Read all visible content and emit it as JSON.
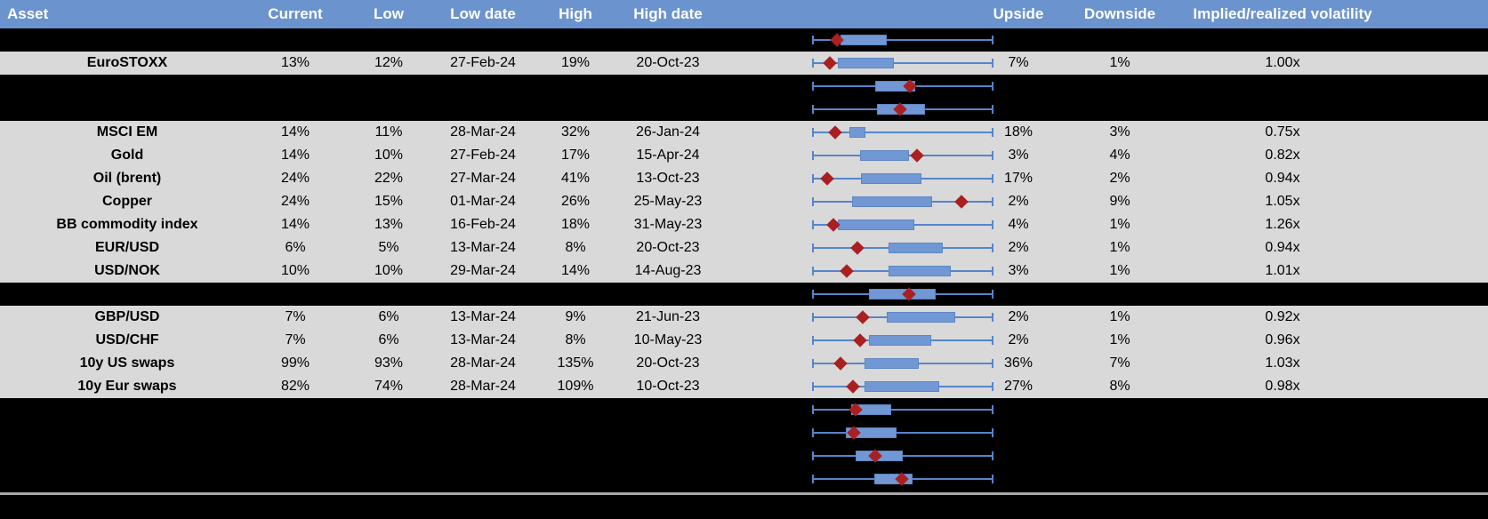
{
  "colors": {
    "header_bg": "#6B93CE",
    "header_text": "#FFFFFF",
    "row_bg": "#D9D9D9",
    "hidden_bg": "#000000",
    "text": "#000000",
    "whisker": "#5585CA",
    "box_fill": "#7198D4",
    "box_border": "#5E87C2",
    "marker": "#A92023",
    "separator": "#A8A8A8"
  },
  "chart_data": {
    "type": "table",
    "columns": [
      "Asset",
      "Current",
      "Low",
      "Low date",
      "High",
      "High date",
      "Upside",
      "Downside",
      "Implied/realized volatility"
    ],
    "range_chart": {
      "marker_shape": "diamond",
      "range_normalized": [
        0,
        1
      ]
    },
    "rows": [
      {
        "hidden": true,
        "box": [
          0.155,
          0.412
        ],
        "marker": 0.137
      },
      {
        "hidden": false,
        "asset": "EuroSTOXX",
        "current": "13%",
        "low": "12%",
        "low_date": "27-Feb-24",
        "high": "19%",
        "high_date": "20-Oct-23",
        "upside": "7%",
        "downside": "1%",
        "implied_realized": "1.00x",
        "box": [
          0.142,
          0.453
        ],
        "marker": 0.096
      },
      {
        "hidden": true,
        "box": [
          0.346,
          0.567
        ],
        "marker": 0.539
      },
      {
        "hidden": true,
        "box": [
          0.359,
          0.621
        ],
        "marker": 0.485
      },
      {
        "hidden": false,
        "asset": "MSCI EM",
        "current": "14%",
        "low": "11%",
        "low_date": "28-Mar-24",
        "high": "32%",
        "high_date": "26-Jan-24",
        "upside": "18%",
        "downside": "3%",
        "implied_realized": "0.75x",
        "box": [
          0.207,
          0.294
        ],
        "marker": 0.126
      },
      {
        "hidden": false,
        "asset": "Gold",
        "current": "14%",
        "low": "10%",
        "low_date": "27-Feb-24",
        "high": "17%",
        "high_date": "15-Apr-24",
        "upside": "3%",
        "downside": "4%",
        "implied_realized": "0.82x",
        "box": [
          0.265,
          0.534
        ],
        "marker": 0.578
      },
      {
        "hidden": false,
        "asset": "Oil (brent)",
        "current": "24%",
        "low": "22%",
        "low_date": "27-Mar-24",
        "high": "41%",
        "high_date": "13-Oct-23",
        "upside": "17%",
        "downside": "2%",
        "implied_realized": "0.94x",
        "box": [
          0.27,
          0.605
        ],
        "marker": 0.085
      },
      {
        "hidden": false,
        "asset": "Copper",
        "current": "24%",
        "low": "15%",
        "low_date": "01-Mar-24",
        "high": "26%",
        "high_date": "25-May-23",
        "upside": "2%",
        "downside": "9%",
        "implied_realized": "1.05x",
        "box": [
          0.219,
          0.662
        ],
        "marker": 0.825
      },
      {
        "hidden": false,
        "asset": "BB commodity index",
        "current": "14%",
        "low": "13%",
        "low_date": "16-Feb-24",
        "high": "18%",
        "high_date": "31-May-23",
        "upside": "4%",
        "downside": "1%",
        "implied_realized": "1.26x",
        "box": [
          0.142,
          0.562
        ],
        "marker": 0.118
      },
      {
        "hidden": false,
        "asset": "EUR/USD",
        "current": "6%",
        "low": "5%",
        "low_date": "13-Mar-24",
        "high": "8%",
        "high_date": "20-Oct-23",
        "upside": "2%",
        "downside": "1%",
        "implied_realized": "0.94x",
        "box": [
          0.42,
          0.719
        ],
        "marker": 0.248
      },
      {
        "hidden": false,
        "asset": "USD/NOK",
        "current": "10%",
        "low": "10%",
        "low_date": "29-Mar-24",
        "high": "14%",
        "high_date": "14-Aug-23",
        "upside": "3%",
        "downside": "1%",
        "implied_realized": "1.01x",
        "box": [
          0.42,
          0.763
        ],
        "marker": 0.191
      },
      {
        "hidden": true,
        "box": [
          0.314,
          0.681
        ],
        "marker": 0.534
      },
      {
        "hidden": false,
        "asset": "GBP/USD",
        "current": "7%",
        "low": "6%",
        "low_date": "13-Mar-24",
        "high": "9%",
        "high_date": "21-Jun-23",
        "upside": "2%",
        "downside": "1%",
        "implied_realized": "0.92x",
        "box": [
          0.412,
          0.788
        ],
        "marker": 0.281
      },
      {
        "hidden": false,
        "asset": "USD/CHF",
        "current": "7%",
        "low": "6%",
        "low_date": "13-Mar-24",
        "high": "8%",
        "high_date": "10-May-23",
        "upside": "2%",
        "downside": "1%",
        "implied_realized": "0.96x",
        "box": [
          0.314,
          0.657
        ],
        "marker": 0.265
      },
      {
        "hidden": false,
        "asset": "10y US swaps",
        "current": "99%",
        "low": "93%",
        "low_date": "28-Mar-24",
        "high": "135%",
        "high_date": "20-Oct-23",
        "upside": "36%",
        "downside": "7%",
        "implied_realized": "1.03x",
        "box": [
          0.289,
          0.588
        ],
        "marker": 0.155
      },
      {
        "hidden": false,
        "asset": "10y Eur swaps",
        "current": "82%",
        "low": "74%",
        "low_date": "28-Mar-24",
        "high": "109%",
        "high_date": "10-Oct-23",
        "upside": "27%",
        "downside": "8%",
        "implied_realized": "0.98x",
        "box": [
          0.289,
          0.703
        ],
        "marker": 0.224
      },
      {
        "hidden": true,
        "box": [
          0.216,
          0.436
        ],
        "marker": 0.24
      },
      {
        "hidden": true,
        "box": [
          0.186,
          0.464
        ],
        "marker": 0.229
      },
      {
        "hidden": true,
        "box": [
          0.24,
          0.501
        ],
        "marker": 0.35
      },
      {
        "hidden": true,
        "box": [
          0.343,
          0.555
        ],
        "marker": 0.497
      }
    ]
  }
}
